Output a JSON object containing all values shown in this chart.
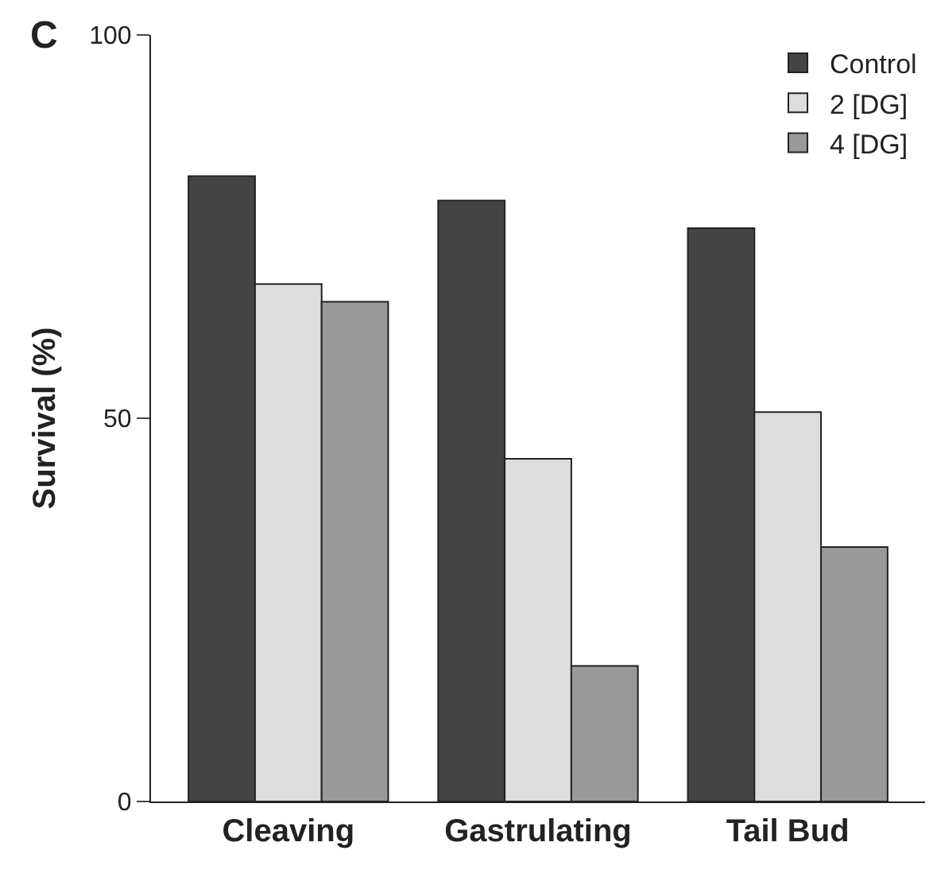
{
  "chart_data": {
    "type": "bar",
    "categories": [
      "Cleaving",
      "Gastrulating",
      "Tail Bud"
    ],
    "series": [
      {
        "name": "Control",
        "color": "#444444",
        "values": [
          81.6,
          78.4,
          74.8
        ]
      },
      {
        "name": "2 [DG]",
        "color": "#dddddd",
        "values": [
          67.5,
          44.7,
          50.8
        ]
      },
      {
        "name": "4 [DG]",
        "color": "#999999",
        "values": [
          65.2,
          17.7,
          33.2
        ]
      }
    ],
    "ylabel": "Survival (%)",
    "ylim": [
      0,
      100
    ],
    "yticks": [
      0,
      50,
      100
    ],
    "legend": "top right",
    "annotations": [
      "C"
    ]
  }
}
